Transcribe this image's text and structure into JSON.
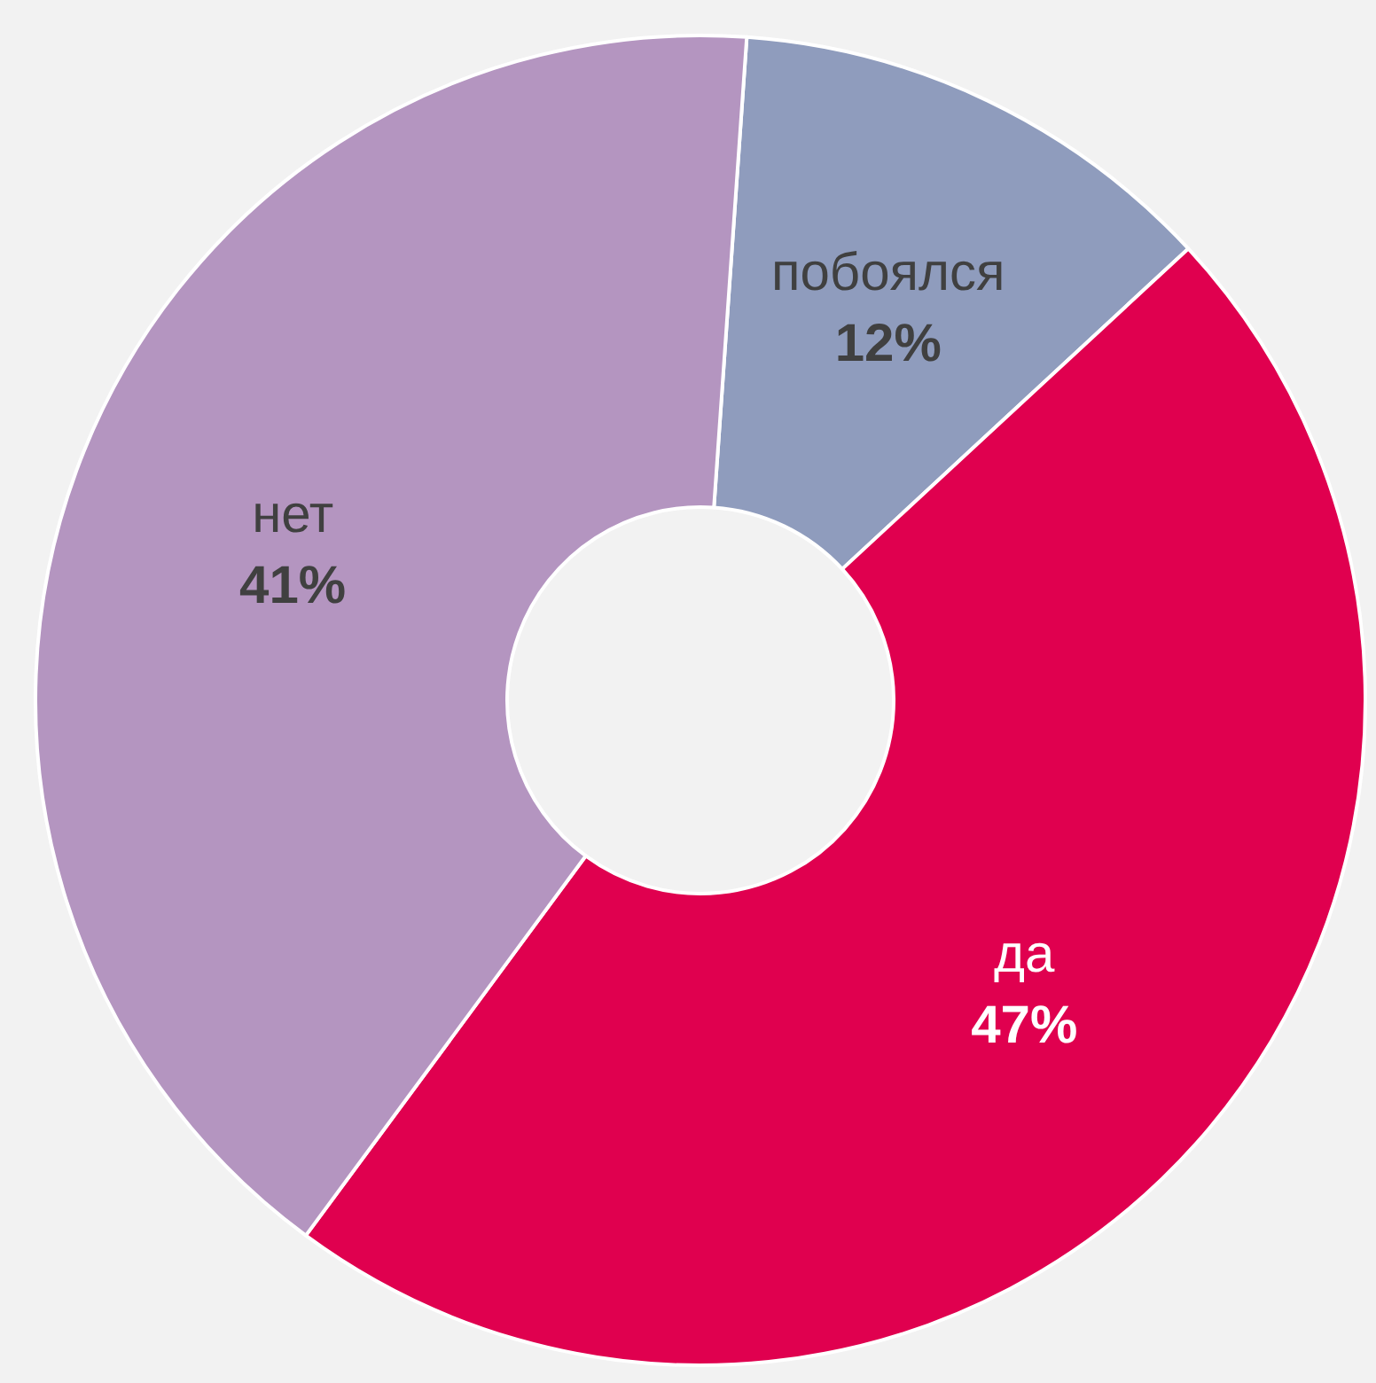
{
  "chart_data": {
    "type": "donut",
    "categories": [
      "побоялся",
      "да",
      "нет"
    ],
    "values": [
      12,
      47,
      41
    ],
    "value_labels": [
      "12%",
      "47%",
      "41%"
    ],
    "colors": [
      "#8f9cbd",
      "#e0004f",
      "#b495c0"
    ],
    "legend": false
  }
}
